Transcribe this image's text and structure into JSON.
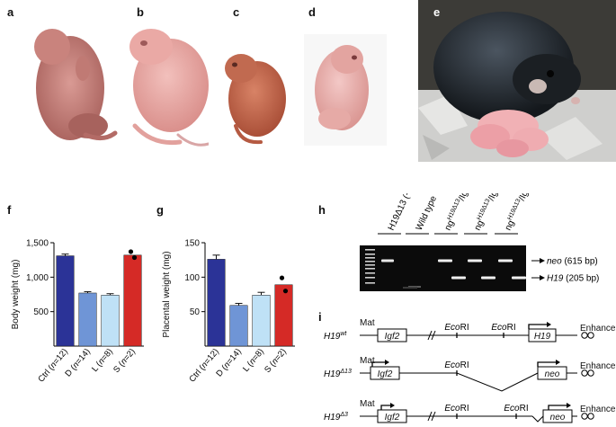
{
  "panels": {
    "a": "a",
    "b": "b",
    "c": "c",
    "d": "d",
    "e": "e",
    "f": "f",
    "g": "g",
    "h": "h",
    "i": "i"
  },
  "colors": {
    "ctrl": "#2b3397",
    "d": "#6f95d6",
    "l": "#bfe1f6",
    "s": "#d52a26"
  },
  "chart_data": [
    {
      "panel": "f",
      "type": "bar",
      "ylabel": "Body weight (mg)",
      "ylim": [
        0,
        1500
      ],
      "yticks": [
        500,
        1000,
        1500
      ],
      "ytick_labels": [
        "500",
        "1,000",
        "1,500"
      ],
      "categories": [
        "Ctrl (n=12)",
        "D (n=14)",
        "L (n=8)",
        "S (n=2)"
      ],
      "category_parts": [
        {
          "pre": "Ctrl (",
          "n": "n",
          "post": "=12)"
        },
        {
          "pre": "D (",
          "n": "n",
          "post": "=14)"
        },
        {
          "pre": "L (",
          "n": "n",
          "post": "=8)"
        },
        {
          "pre": "S (",
          "n": "n",
          "post": "=2)"
        }
      ],
      "values": [
        1310,
        770,
        740,
        1320
      ],
      "errors": [
        25,
        20,
        20,
        0
      ],
      "points": [
        {
          "bar": 3,
          "values": [
            1370,
            1285
          ]
        }
      ]
    },
    {
      "panel": "g",
      "type": "bar",
      "ylabel": "Placental weight (mg)",
      "ylim": [
        0,
        150
      ],
      "yticks": [
        50,
        100,
        150
      ],
      "ytick_labels": [
        "50",
        "100",
        "150"
      ],
      "categories": [
        "Ctrl (n=12)",
        "D (n=14)",
        "L (n=8)",
        "S (n=2)"
      ],
      "category_parts": [
        {
          "pre": "Ctrl (",
          "n": "n",
          "post": "=12)"
        },
        {
          "pre": "D (",
          "n": "n",
          "post": "=14)"
        },
        {
          "pre": "L (",
          "n": "n",
          "post": "=8)"
        },
        {
          "pre": "S (",
          "n": "n",
          "post": "=2)"
        }
      ],
      "values": [
        126,
        59,
        74,
        89
      ],
      "errors": [
        6,
        3,
        4,
        0
      ],
      "points": [
        {
          "bar": 3,
          "values": [
            99,
            80
          ]
        }
      ]
    }
  ],
  "gel": {
    "lanes": [
      {
        "main": "H19Δ13 (−/−)"
      },
      {
        "main": "Wild type"
      },
      {
        "main": "ng",
        "sup1": "H19Δ13",
        "mid": "/Ig",
        "sup2": "wt"
      },
      {
        "main": "ng",
        "sup1": "H19Δ13",
        "mid": "/Ig",
        "sup2": "wt"
      },
      {
        "main": "ng",
        "sup1": "H19Δ13",
        "mid": "/Ig",
        "sup2": "wt"
      }
    ],
    "bands": [
      {
        "italic": "neo",
        "rest": " (615 bp)"
      },
      {
        "italic": "H19",
        "rest": " (205 bp)"
      }
    ]
  },
  "schematic": {
    "rows": [
      {
        "allele": "H19",
        "sup": "wt"
      },
      {
        "allele": "H19",
        "sup": "Δ13"
      },
      {
        "allele": "H19",
        "sup": "Δ3"
      }
    ],
    "mat": "Mat",
    "igf2": "Igf2",
    "ecori_italic": "Eco",
    "ecori_rest": "RI",
    "h19": "H19",
    "neo": "neo",
    "enhancers": "Enhancers"
  }
}
